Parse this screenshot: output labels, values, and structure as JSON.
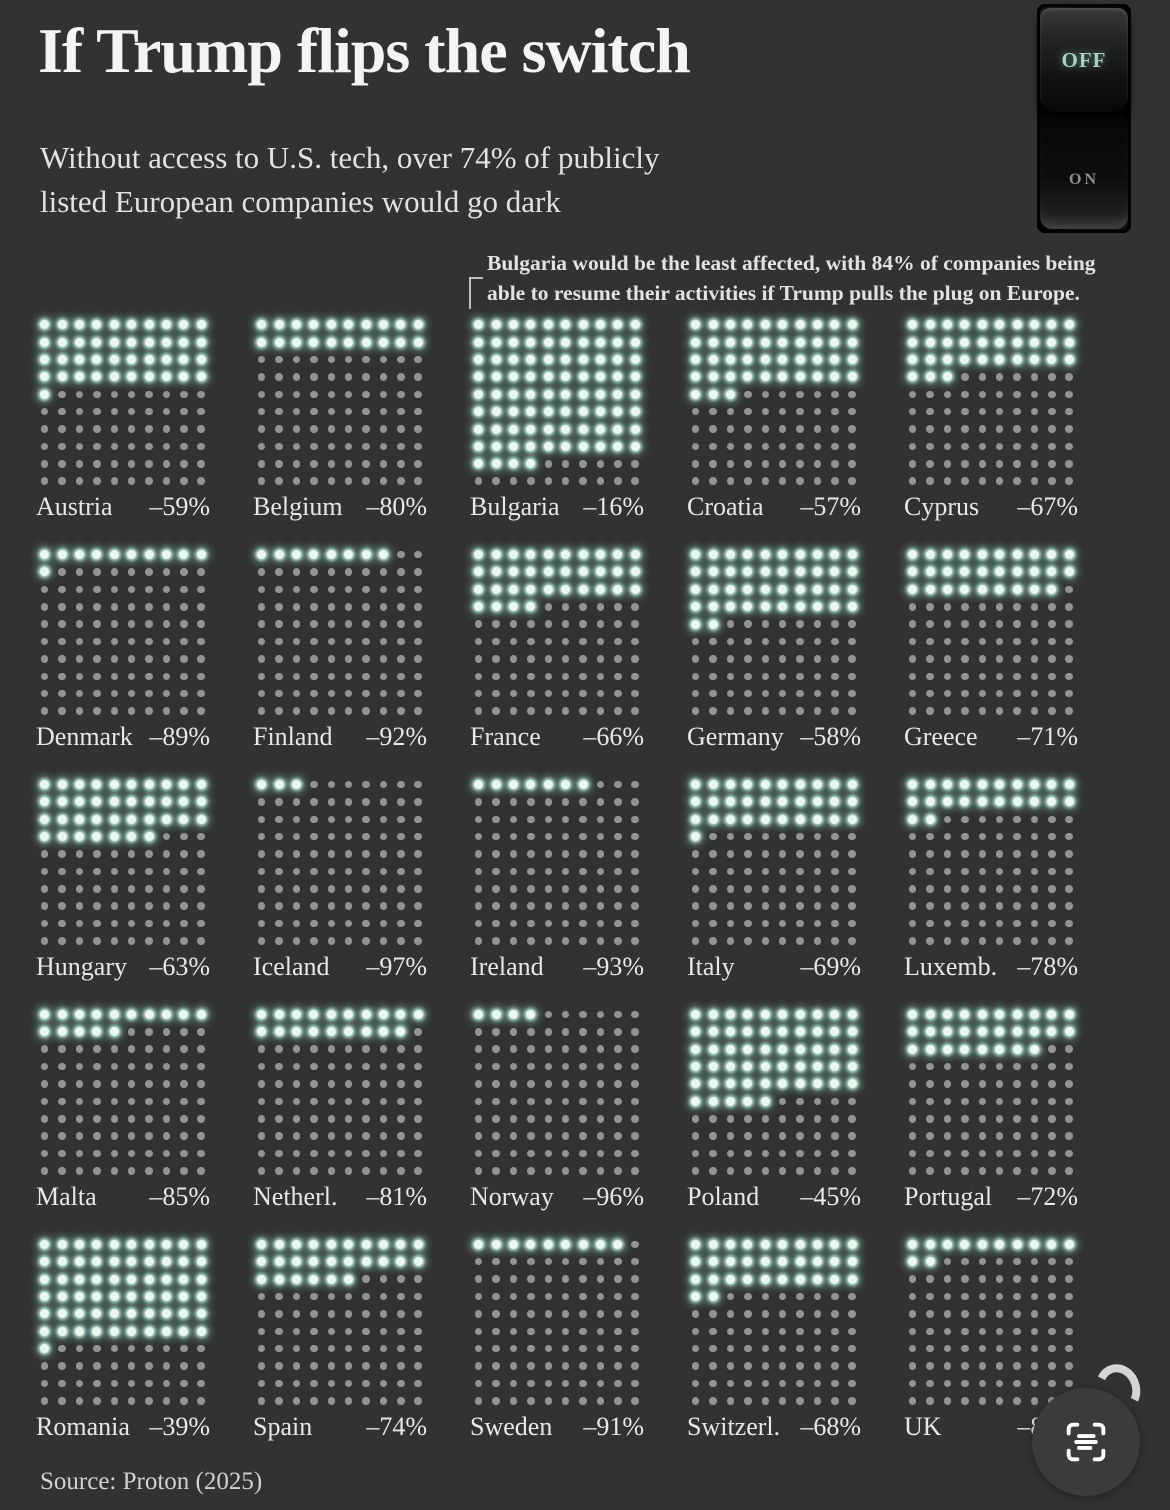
{
  "header": {
    "title": "If Trump flips the switch",
    "subtitle_line1": "Without access to U.S. tech, over 74% of publicly",
    "subtitle_line2": "listed European companies would go dark"
  },
  "power_switch": {
    "off_label": "OFF",
    "on_label": "ON"
  },
  "annotation": {
    "line1": "Bulgaria would be the least affected, with 84% of companies being",
    "line2": "able to resume their activities if Trump pulls the plug on Europe."
  },
  "chart_data": {
    "type": "waffle",
    "rows": 10,
    "cols": 10,
    "fill_order": "top-left, row-major",
    "dot_unit": "1 dot = 1% of publicly listed companies",
    "lit_dots_meaning": "share of companies able to resume activities (100 minus impact)",
    "lit_color": "#e9f8f1",
    "dim_color": "#939393",
    "countries": [
      {
        "name": "Austria",
        "impact_pct": -59,
        "value_label": "–59%",
        "lit_dots": 41
      },
      {
        "name": "Belgium",
        "impact_pct": -80,
        "value_label": "–80%",
        "lit_dots": 20
      },
      {
        "name": "Bulgaria",
        "impact_pct": -16,
        "value_label": "–16%",
        "lit_dots": 84
      },
      {
        "name": "Croatia",
        "impact_pct": -57,
        "value_label": "–57%",
        "lit_dots": 43
      },
      {
        "name": "Cyprus",
        "impact_pct": -67,
        "value_label": "–67%",
        "lit_dots": 33
      },
      {
        "name": "Denmark",
        "impact_pct": -89,
        "value_label": "–89%",
        "lit_dots": 11
      },
      {
        "name": "Finland",
        "impact_pct": -92,
        "value_label": "–92%",
        "lit_dots": 8
      },
      {
        "name": "France",
        "impact_pct": -66,
        "value_label": "–66%",
        "lit_dots": 34
      },
      {
        "name": "Germany",
        "impact_pct": -58,
        "value_label": "–58%",
        "lit_dots": 42
      },
      {
        "name": "Greece",
        "impact_pct": -71,
        "value_label": "–71%",
        "lit_dots": 29
      },
      {
        "name": "Hungary",
        "impact_pct": -63,
        "value_label": "–63%",
        "lit_dots": 37
      },
      {
        "name": "Iceland",
        "impact_pct": -97,
        "value_label": "–97%",
        "lit_dots": 3
      },
      {
        "name": "Ireland",
        "impact_pct": -93,
        "value_label": "–93%",
        "lit_dots": 7
      },
      {
        "name": "Italy",
        "impact_pct": -69,
        "value_label": "–69%",
        "lit_dots": 31
      },
      {
        "name": "Luxemb.",
        "impact_pct": -78,
        "value_label": "–78%",
        "lit_dots": 22
      },
      {
        "name": "Malta",
        "impact_pct": -85,
        "value_label": "–85%",
        "lit_dots": 15
      },
      {
        "name": "Netherl.",
        "impact_pct": -81,
        "value_label": "–81%",
        "lit_dots": 19
      },
      {
        "name": "Norway",
        "impact_pct": -96,
        "value_label": "–96%",
        "lit_dots": 4
      },
      {
        "name": "Poland",
        "impact_pct": -45,
        "value_label": "–45%",
        "lit_dots": 55
      },
      {
        "name": "Portugal",
        "impact_pct": -72,
        "value_label": "–72%",
        "lit_dots": 28
      },
      {
        "name": "Romania",
        "impact_pct": -39,
        "value_label": "–39%",
        "lit_dots": 61
      },
      {
        "name": "Spain",
        "impact_pct": -74,
        "value_label": "–74%",
        "lit_dots": 26
      },
      {
        "name": "Sweden",
        "impact_pct": -91,
        "value_label": "–91%",
        "lit_dots": 9
      },
      {
        "name": "Switzerl.",
        "impact_pct": -68,
        "value_label": "–68%",
        "lit_dots": 32
      },
      {
        "name": "UK",
        "impact_pct": -88,
        "value_label": "–88%",
        "lit_dots": 12
      }
    ]
  },
  "footer": {
    "source": "Source: Proton (2025)"
  },
  "overlay": {
    "scan_button_icon": "scan-text-icon"
  }
}
